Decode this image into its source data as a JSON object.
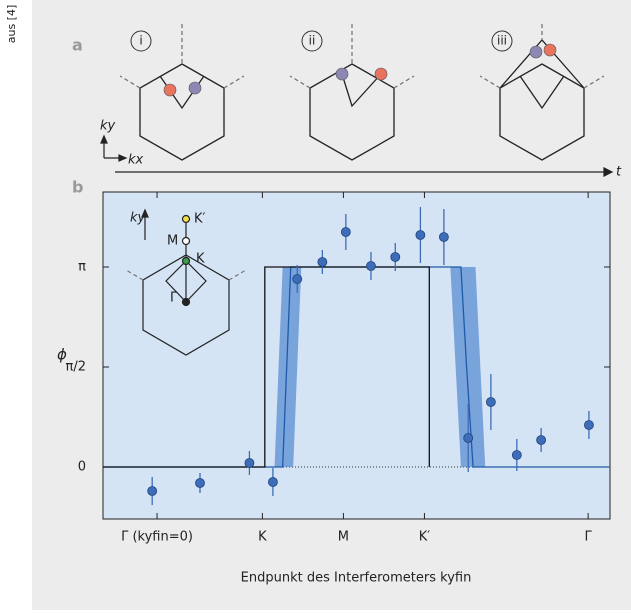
{
  "figure": {
    "source": "aus [4]",
    "panel_a": {
      "label": "a",
      "steps": [
        "i",
        "ii",
        "iii"
      ],
      "ky": "ky",
      "kx": "kx",
      "t": "t"
    },
    "panel_b": {
      "label": "b",
      "inset": {
        "ky": "ky",
        "points": [
          "K′",
          "M",
          "K",
          "Γ"
        ]
      }
    }
  },
  "chart_data": {
    "type": "scatter",
    "x_label": "Endpunkt des Interferometers kyfin",
    "y_label": "ϕ",
    "xlim": [
      -0.667,
      5.59
    ],
    "ylim": [
      -0.26,
      1.375
    ],
    "xticks": [
      {
        "value": 0,
        "label": "Γ (kyfin=0)"
      },
      {
        "value": 1.3,
        "label": "K"
      },
      {
        "value": 2.3,
        "label": "M"
      },
      {
        "value": 3.3,
        "label": "K′"
      },
      {
        "value": 5.32,
        "label": "Γ"
      }
    ],
    "yticks": [
      0,
      {
        "value": 0.5,
        "label": "π/2"
      },
      {
        "value": 1,
        "label": "π"
      }
    ],
    "hline": 0,
    "band": {
      "color": "#5a8dd2",
      "x": [
        -0.667,
        1.45,
        1.55,
        1.68,
        1.78,
        3.62,
        3.75,
        3.93,
        4.05,
        5.59
      ],
      "upper": [
        0,
        0,
        1,
        1,
        1,
        1,
        1,
        1,
        0,
        0
      ],
      "lower": [
        0,
        0,
        0,
        0,
        1,
        1,
        0,
        0,
        0,
        0
      ]
    },
    "lines": [
      {
        "color": "#1f5aa8",
        "x": [
          -0.667,
          1.55,
          1.6,
          1.65,
          3.75,
          3.82,
          3.9,
          5.59
        ],
        "values": [
          0,
          0,
          0.5,
          1,
          1,
          0.5,
          0,
          0
        ]
      },
      {
        "color": "#111111",
        "x": [
          -0.667,
          1.33,
          1.33,
          3.36,
          3.36
        ],
        "values": [
          0,
          0,
          1,
          1,
          0
        ]
      }
    ],
    "points": {
      "color": "#3d6cb8",
      "x": [
        -0.06,
        0.53,
        1.14,
        1.43,
        1.73,
        2.04,
        2.33,
        2.64,
        2.94,
        3.25,
        3.54,
        3.84,
        4.12,
        4.44,
        4.74,
        5.33
      ],
      "values": [
        -0.12,
        -0.08,
        0.02,
        -0.075,
        0.94,
        1.025,
        1.175,
        1.005,
        1.05,
        1.16,
        1.15,
        0.145,
        0.325,
        0.06,
        0.135,
        0.21
      ],
      "errors": [
        0.07,
        0.05,
        0.06,
        0.07,
        0.07,
        0.06,
        0.09,
        0.07,
        0.07,
        0.14,
        0.14,
        0.17,
        0.14,
        0.08,
        0.06,
        0.07
      ]
    }
  }
}
